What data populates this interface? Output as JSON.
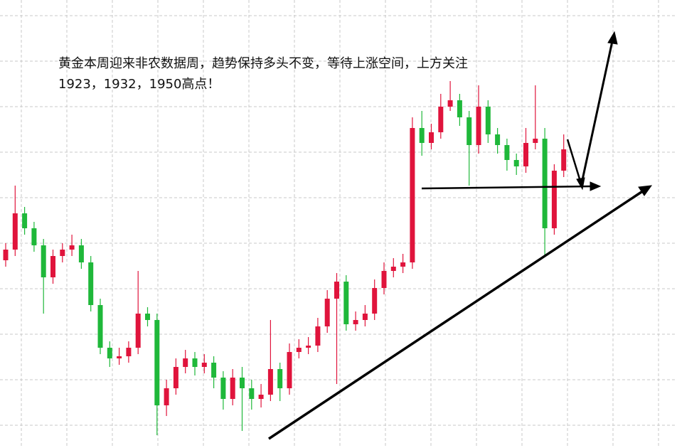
{
  "chart_data": {
    "type": "candlestick",
    "annotation": [
      "黄金本周迎来非农数据周，趋势保持多头不变，等待上涨空间，上方关注",
      "1923，1932，1950高点！"
    ],
    "ylim": [
      1800,
      2010
    ],
    "up_color": "#e0143c",
    "down_color": "#1fb83a",
    "open": [
      1888,
      1893,
      1910,
      1903,
      1895,
      1880,
      1890,
      1893,
      1895,
      1887,
      1867,
      1847,
      1842,
      1843,
      1847,
      1863,
      1860,
      1820,
      1828,
      1838,
      1842,
      1838,
      1840,
      1833,
      1823,
      1833,
      1828,
      1823,
      1825,
      1837,
      1828,
      1845,
      1847,
      1848,
      1857,
      1870,
      1878,
      1858,
      1860,
      1863,
      1875,
      1883,
      1885,
      1887,
      1950,
      1943,
      1948,
      1960,
      1963,
      1955,
      1942,
      1960,
      1947,
      1942,
      1935,
      1932,
      1943,
      1945,
      1903,
      1930
    ],
    "high": [
      1896,
      1923,
      1913,
      1906,
      1898,
      1893,
      1896,
      1900,
      1898,
      1890,
      1870,
      1850,
      1847,
      1850,
      1883,
      1866,
      1863,
      1832,
      1842,
      1846,
      1845,
      1844,
      1843,
      1836,
      1837,
      1838,
      1832,
      1830,
      1860,
      1840,
      1849,
      1851,
      1852,
      1861,
      1874,
      1882,
      1881,
      1864,
      1867,
      1879,
      1887,
      1889,
      1891,
      1955,
      1958,
      1952,
      1966,
      1972,
      1966,
      1958,
      1970,
      1963,
      1950,
      1945,
      1938,
      1950,
      1970,
      1950,
      1933,
      1947
    ],
    "low": [
      1885,
      1890,
      1900,
      1892,
      1863,
      1877,
      1887,
      1890,
      1884,
      1864,
      1844,
      1838,
      1839,
      1840,
      1844,
      1857,
      1806,
      1815,
      1825,
      1835,
      1834,
      1835,
      1828,
      1818,
      1820,
      1808,
      1818,
      1819,
      1822,
      1822,
      1825,
      1842,
      1844,
      1845,
      1854,
      1830,
      1855,
      1855,
      1857,
      1860,
      1872,
      1880,
      1882,
      1884,
      1937,
      1940,
      1945,
      1958,
      1951,
      1923,
      1938,
      1943,
      1938,
      1930,
      1928,
      1929,
      1940,
      1890,
      1900,
      1927
    ],
    "close": [
      1893,
      1910,
      1903,
      1895,
      1880,
      1890,
      1893,
      1895,
      1887,
      1867,
      1847,
      1842,
      1843,
      1847,
      1863,
      1860,
      1820,
      1828,
      1838,
      1842,
      1838,
      1840,
      1833,
      1823,
      1833,
      1828,
      1823,
      1825,
      1837,
      1828,
      1845,
      1847,
      1848,
      1857,
      1870,
      1878,
      1858,
      1860,
      1863,
      1875,
      1883,
      1885,
      1887,
      1950,
      1943,
      1948,
      1960,
      1963,
      1955,
      1942,
      1960,
      1947,
      1942,
      1935,
      1932,
      1943,
      1945,
      1903,
      1930,
      1940
    ]
  }
}
